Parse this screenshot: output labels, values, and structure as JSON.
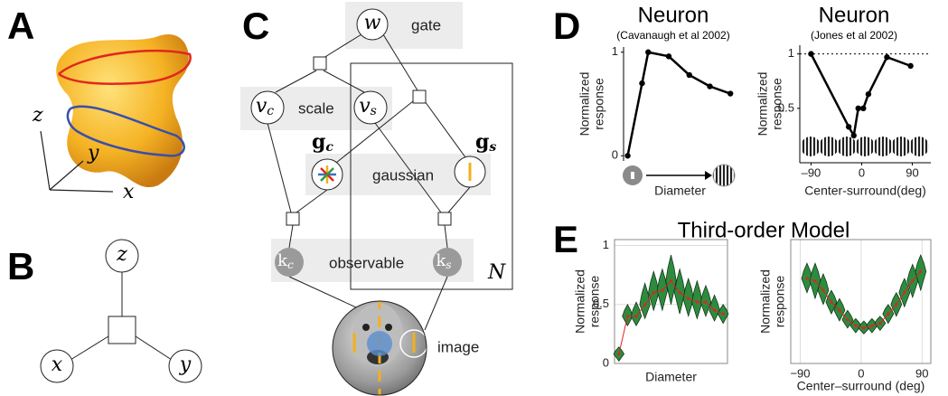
{
  "panel_a": {
    "label": "A",
    "axis_labels": [
      "z",
      "y",
      "x"
    ]
  },
  "panel_b": {
    "label": "B",
    "nodes": [
      "z",
      "x",
      "y"
    ]
  },
  "panel_c": {
    "label": "C",
    "nodes": {
      "w": {
        "main": "w"
      },
      "v_c": {
        "main": "v",
        "sub": "c"
      },
      "v_s": {
        "main": "v",
        "sub": "s"
      },
      "g_c": {
        "main": "g",
        "sub": "c"
      },
      "g_s": {
        "main": "g",
        "sub": "s"
      },
      "k_c": {
        "main": "k",
        "sub": "c"
      },
      "k_s": {
        "main": "k",
        "sub": "s"
      }
    },
    "texts": {
      "gate": "gate",
      "scale": "scale",
      "gaussian": "gaussian",
      "observable": "observable",
      "image": "image",
      "plate": "N"
    }
  },
  "panel_d": {
    "label": "D"
  },
  "panel_e": {
    "label": "E"
  },
  "chart_data": [
    {
      "type": "line",
      "title": "Neuron",
      "subtitle": "(Cavanaugh et al 2002)",
      "ylabel": [
        "Normalized",
        "response"
      ],
      "xlabel": "Diameter",
      "x": [
        0,
        0.7,
        1,
        2,
        3,
        4,
        5
      ],
      "values": [
        0,
        0.7,
        1,
        0.96,
        0.78,
        0.67,
        0.6
      ],
      "color": "#000000",
      "xlim": [
        -0.2,
        5.3
      ],
      "ylim": [
        -0.05,
        1.05
      ],
      "yticks": [
        0,
        1
      ]
    },
    {
      "type": "line",
      "title": "Neuron",
      "subtitle": "(Jones et al 2002)",
      "ylabel": [
        "Normalized",
        "response"
      ],
      "xlabel": "Center-surround(deg)",
      "x": [
        -90,
        -23,
        -14,
        -6,
        3,
        12,
        45,
        87
      ],
      "values": [
        1,
        0.33,
        0.25,
        0.5,
        0.5,
        0.63,
        0.97,
        0.89
      ],
      "color": "#000000",
      "xlim": [
        -110,
        123
      ],
      "ylim": [
        0,
        1.08
      ],
      "yticks": [
        0.5,
        1
      ],
      "xticks": [
        {
          "value": -90,
          "label": "–90"
        },
        0,
        90
      ],
      "reference_line": 1
    },
    {
      "type": "violin",
      "title": "Third-order Model",
      "ylabel": [
        "Normalized",
        "response"
      ],
      "xlabel": "Diameter",
      "categories": [
        null,
        null,
        null,
        null,
        null,
        null,
        null,
        null,
        null,
        null,
        null,
        null,
        null
      ],
      "values": [
        0.08,
        0.4,
        0.4,
        0.5,
        0.6,
        0.62,
        0.7,
        0.6,
        0.55,
        0.52,
        0.52,
        0.45,
        0.42
      ],
      "lower": [
        0.02,
        0.32,
        0.32,
        0.38,
        0.45,
        0.45,
        0.5,
        0.42,
        0.4,
        0.38,
        0.4,
        0.36,
        0.34
      ],
      "upper": [
        0.14,
        0.5,
        0.52,
        0.68,
        0.78,
        0.8,
        0.92,
        0.8,
        0.72,
        0.7,
        0.66,
        0.58,
        0.5
      ],
      "color": "#2e8b3e",
      "line_color": "#d62728",
      "ylim": [
        0,
        1.05
      ],
      "yticks": [
        0,
        0.5,
        1
      ],
      "grid": true
    },
    {
      "type": "violin",
      "ylabel": [
        "Normalized",
        "response"
      ],
      "xlabel": "Center–surround (deg)",
      "x": [
        -80,
        -68,
        -56,
        -44,
        -32,
        -20,
        -8,
        4,
        16,
        28,
        40,
        52,
        64,
        76,
        88
      ],
      "values": [
        0.72,
        0.7,
        0.62,
        0.52,
        0.45,
        0.37,
        0.32,
        0.3,
        0.32,
        0.34,
        0.42,
        0.5,
        0.6,
        0.7,
        0.78
      ],
      "lower": [
        0.6,
        0.55,
        0.5,
        0.42,
        0.36,
        0.3,
        0.26,
        0.25,
        0.26,
        0.28,
        0.34,
        0.4,
        0.48,
        0.56,
        0.62
      ],
      "upper": [
        0.85,
        0.85,
        0.76,
        0.62,
        0.55,
        0.45,
        0.38,
        0.36,
        0.38,
        0.4,
        0.5,
        0.6,
        0.72,
        0.84,
        0.92
      ],
      "color": "#2e8b3e",
      "line_color": "#d62728",
      "xlim": [
        -104,
        103
      ],
      "ylim": [
        0,
        1.05
      ],
      "xticks": [
        {
          "value": -90,
          "label": "−90"
        },
        0,
        90
      ],
      "grid": true
    }
  ]
}
